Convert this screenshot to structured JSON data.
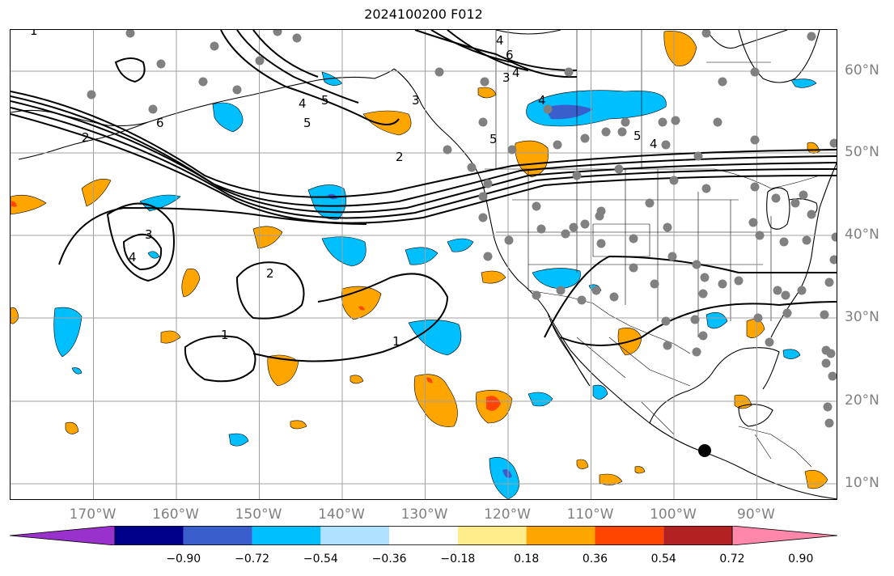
{
  "title": "2024100200 F012",
  "map": {
    "lon_ticks": [
      {
        "label": "170°W",
        "lon": -170
      },
      {
        "label": "160°W",
        "lon": -160
      },
      {
        "label": "150°W",
        "lon": -150
      },
      {
        "label": "140°W",
        "lon": -140
      },
      {
        "label": "130°W",
        "lon": -130
      },
      {
        "label": "120°W",
        "lon": -120
      },
      {
        "label": "110°W",
        "lon": -110
      },
      {
        "label": "100°W",
        "lon": -100
      },
      {
        "label": "90°W",
        "lon": -90
      }
    ],
    "lat_ticks": [
      {
        "label": "60°N",
        "lat": 60
      },
      {
        "label": "50°N",
        "lat": 50
      },
      {
        "label": "40°N",
        "lat": 40
      },
      {
        "label": "30°N",
        "lat": 30
      },
      {
        "label": "20°N",
        "lat": 20
      },
      {
        "label": "10°N",
        "lat": 10
      }
    ],
    "contour_labels": [
      "1",
      "2",
      "3",
      "4",
      "5",
      "6"
    ],
    "grid": true,
    "gridline_color": "#a0a0a0",
    "station_marker_color": "#808080",
    "highlight_marker_color": "#000000"
  },
  "colorbar": {
    "tick_labels": [
      "−0.90",
      "−0.72",
      "−0.54",
      "−0.36",
      "−0.18",
      "0.18",
      "0.36",
      "0.54",
      "0.72",
      "0.90"
    ],
    "colors": [
      "#9932cc",
      "#00008b",
      "#3a5fcd",
      "#00bfff",
      "#b0e2ff",
      "#ffffff",
      "#ffec8b",
      "#ffa500",
      "#ff4500",
      "#b22222",
      "#ff88aa"
    ]
  }
}
